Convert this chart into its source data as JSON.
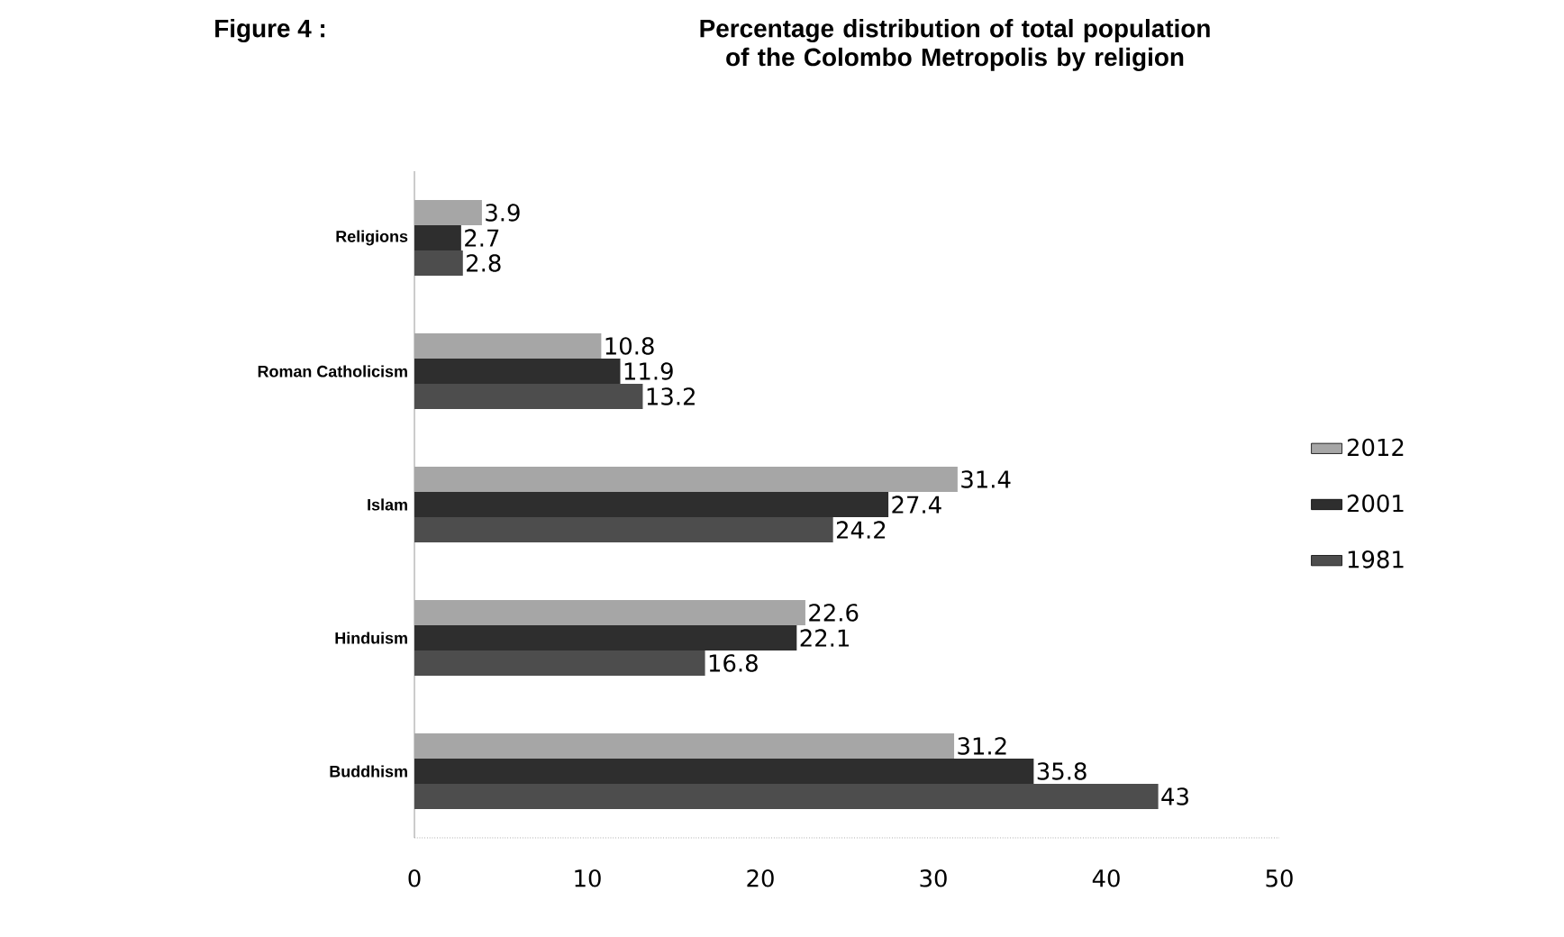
{
  "chart_data": {
    "type": "bar",
    "orientation": "horizontal",
    "title": "Percentage distribution of total population of the Colombo Metropolis by religion",
    "annotations": [
      "Figure 4 :"
    ],
    "categories": [
      "Religions",
      "Roman Catholicism",
      "Islam",
      "Hinduism",
      "Buddhism"
    ],
    "series": [
      {
        "name": "2012",
        "color": "#a6a6a6",
        "values": [
          3.9,
          10.8,
          31.4,
          22.6,
          31.2
        ]
      },
      {
        "name": "2001",
        "color": "#2e2e2e",
        "values": [
          2.7,
          11.9,
          27.4,
          22.1,
          35.8
        ]
      },
      {
        "name": "1981",
        "color": "#4d4d4d",
        "values": [
          2.8,
          13.2,
          24.2,
          16.8,
          43
        ]
      }
    ],
    "xlim": [
      0,
      50
    ],
    "xticks": [
      0,
      10,
      20,
      30,
      40,
      50
    ],
    "data_labels": true,
    "legend": "right",
    "grid": false
  }
}
